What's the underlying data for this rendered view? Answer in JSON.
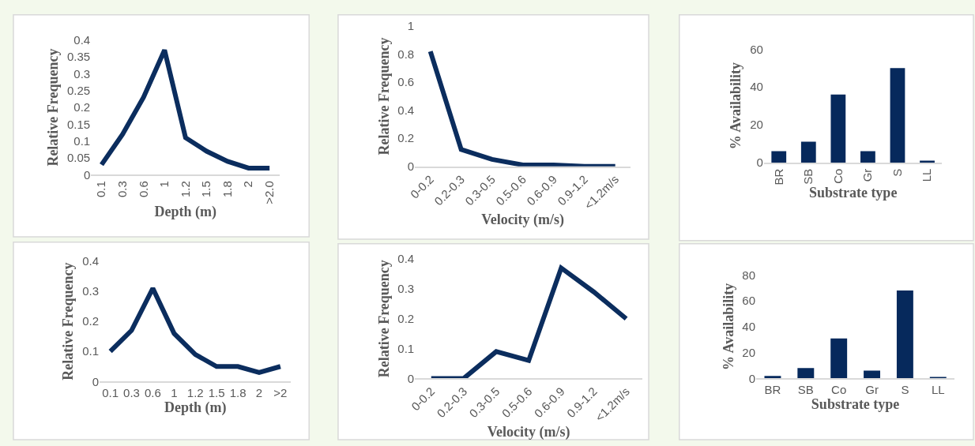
{
  "chart_data": [
    {
      "type": "line",
      "xlabel": "Depth (m)",
      "ylabel": "Relative Frequency",
      "color": "#0b2d5e",
      "categories": [
        "0.1",
        "0.3",
        "0.6",
        "1",
        "1.2",
        "1.5",
        "1.8",
        "2",
        ">2.0"
      ],
      "values": [
        0.03,
        0.12,
        0.23,
        0.37,
        0.11,
        0.07,
        0.04,
        0.02,
        0.02
      ],
      "ylim": [
        0,
        0.4
      ],
      "yticks": [
        0,
        0.05,
        0.1,
        0.15,
        0.2,
        0.25,
        0.3,
        0.35,
        0.4
      ]
    },
    {
      "type": "line",
      "xlabel": "Velocity (m/s)",
      "ylabel": "Relative Frequency",
      "color": "#0b2d5e",
      "categories": [
        "0-0.2",
        "0.2-0.3",
        "0.3-0.5",
        "0.5-0.6",
        "0.6-0.9",
        "0.9-1.2",
        "<1.2m/s"
      ],
      "values": [
        0.82,
        0.12,
        0.05,
        0.01,
        0.01,
        0,
        0
      ],
      "ylim": [
        0,
        1
      ],
      "yticks": [
        0,
        0.2,
        0.4,
        0.6,
        0.8,
        1
      ]
    },
    {
      "type": "bar",
      "xlabel": "Substrate type",
      "ylabel": "% Availability",
      "color": "#06295c",
      "categories": [
        "BR",
        "SB",
        "Co",
        "Gr",
        "S",
        "LL"
      ],
      "values": [
        6,
        11,
        36,
        6,
        50,
        1
      ],
      "ylim": [
        0,
        60
      ],
      "yticks": [
        0,
        20,
        40,
        60
      ]
    },
    {
      "type": "line",
      "xlabel": "Depth (m)",
      "ylabel": "Relative Frequency",
      "color": "#0b2d5e",
      "categories": [
        "0.1",
        "0.3",
        "0.6",
        "1",
        "1.2",
        "1.5",
        "1.8",
        "2",
        ">2"
      ],
      "values": [
        0.1,
        0.17,
        0.31,
        0.16,
        0.09,
        0.05,
        0.05,
        0.03,
        0.05
      ],
      "ylim": [
        0,
        0.4
      ],
      "yticks": [
        0,
        0.1,
        0.2,
        0.3,
        0.4
      ]
    },
    {
      "type": "line",
      "xlabel": "Velocity (m/s)",
      "ylabel": "Relative Frequency",
      "color": "#0b2d5e",
      "categories": [
        "0-0.2",
        "0.2-0.3",
        "0.3-0.5",
        "0.5-0.6",
        "0.6-0.9",
        "0.9-1.2",
        "<1.2m/s"
      ],
      "values": [
        0,
        0,
        0.09,
        0.06,
        0.37,
        0.29,
        0.2
      ],
      "ylim": [
        0,
        0.4
      ],
      "yticks": [
        0,
        0.1,
        0.2,
        0.3,
        0.4
      ]
    },
    {
      "type": "bar",
      "xlabel": "Substrate type",
      "ylabel": "% Availability",
      "color": "#06295c",
      "categories": [
        "BR",
        "SB",
        "Co",
        "Gr",
        "S",
        "LL"
      ],
      "values": [
        2,
        8,
        31,
        6,
        68,
        1
      ],
      "ylim": [
        0,
        80
      ],
      "yticks": [
        0,
        20,
        40,
        60,
        80
      ]
    }
  ]
}
